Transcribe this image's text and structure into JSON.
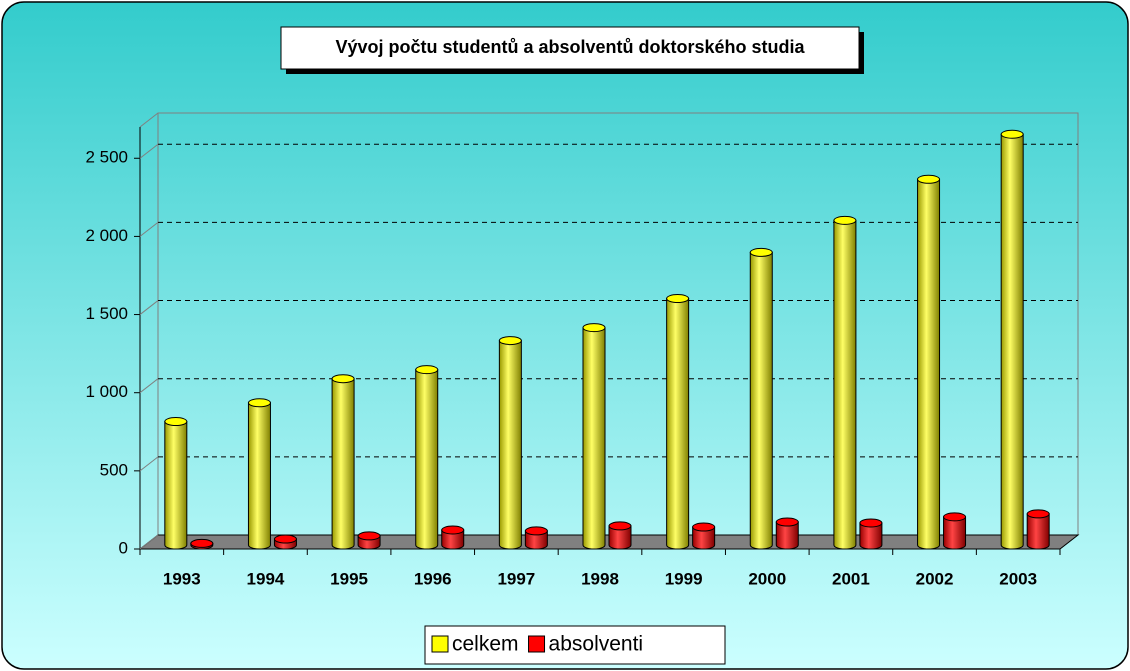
{
  "chart_data": {
    "type": "bar3d",
    "title": "Vývoj počtu studentů a absolventů doktorského studia",
    "categories": [
      "1993",
      "1994",
      "1995",
      "1996",
      "1997",
      "1998",
      "1999",
      "2000",
      "2001",
      "2002",
      "2003"
    ],
    "series": [
      {
        "name": "celkem",
        "color": "#ffff00",
        "values": [
          790,
          910,
          1064,
          1122,
          1308,
          1391,
          1577,
          1872,
          2077,
          2340,
          2628
        ]
      },
      {
        "name": "absolventi",
        "color": "#ff0000",
        "values": [
          10,
          38,
          58,
          96,
          90,
          122,
          115,
          147,
          141,
          180,
          199
        ]
      }
    ],
    "ylim": [
      0,
      2700
    ],
    "yticks": [
      0,
      500,
      {
        "value": 1000,
        "label": "1 000"
      },
      {
        "value": 1500,
        "label": "1 500"
      },
      {
        "value": 2000,
        "label": "2 000"
      },
      {
        "value": 2500,
        "label": "2 500"
      }
    ],
    "grid": true,
    "legend": "bottom"
  }
}
